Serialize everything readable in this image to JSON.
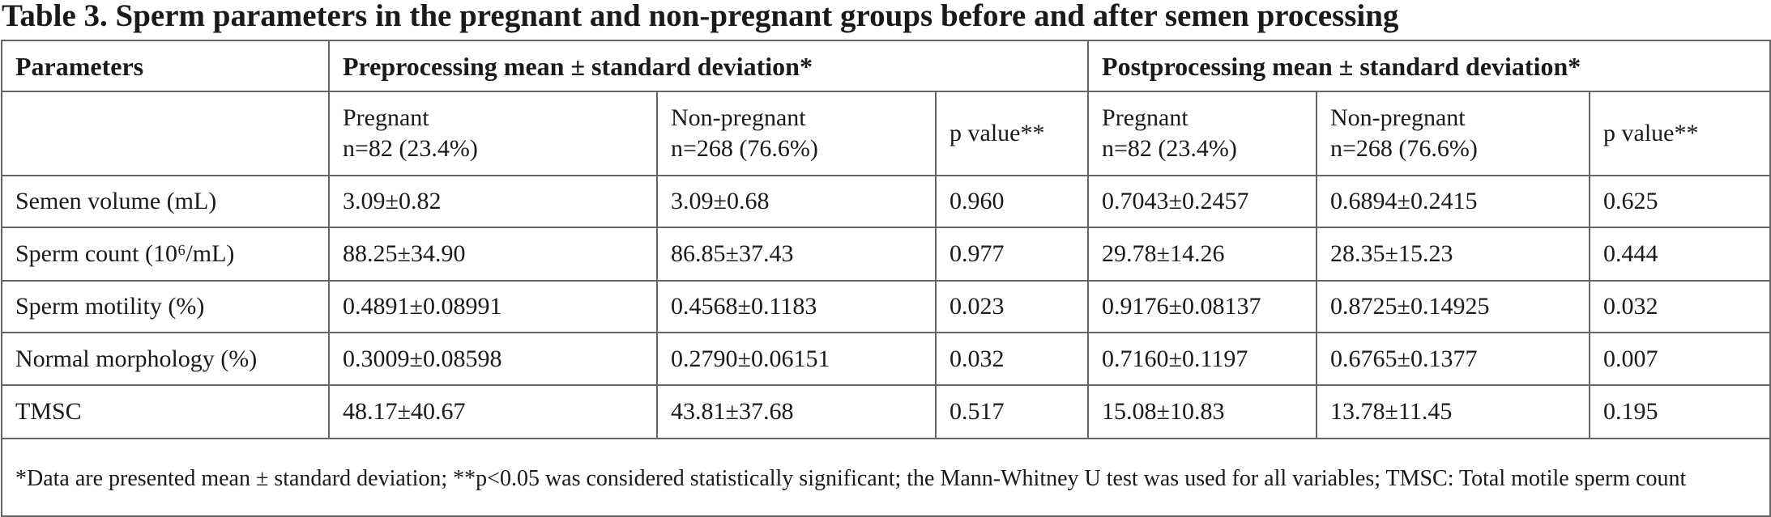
{
  "title": "Table 3. Sperm parameters in the pregnant and non-pregnant groups before and after semen processing",
  "table": {
    "header": [
      "Parameters",
      "Preprocessing mean ± standard deviation*",
      "Postprocessing mean ± standard deviation*"
    ],
    "subheader": [
      [
        "Pregnant",
        "n=82 (23.4%)"
      ],
      [
        "Non-pregnant",
        "n=268 (76.6%)"
      ],
      [
        "p value**"
      ],
      [
        "Pregnant",
        "n=82 (23.4%)"
      ],
      [
        "Non-pregnant",
        "n=268 (76.6%)"
      ],
      [
        "p value**"
      ]
    ],
    "rows": [
      [
        "Semen volume (mL)",
        "3.09±0.82",
        "3.09±0.68",
        "0.960",
        "0.7043±0.2457",
        "0.6894±0.2415",
        "0.625"
      ],
      [
        "Sperm count (10⁶/mL)",
        "88.25±34.90",
        "86.85±37.43",
        "0.977",
        "29.78±14.26",
        "28.35±15.23",
        "0.444"
      ],
      [
        "Sperm motility (%)",
        "0.4891±0.08991",
        "0.4568±0.1183",
        "0.023",
        "0.9176±0.08137",
        "0.8725±0.14925",
        "0.032"
      ],
      [
        "Normal morphology (%)",
        "0.3009±0.08598",
        "0.2790±0.06151",
        "0.032",
        "0.7160±0.1197",
        "0.6765±0.1377",
        "0.007"
      ],
      [
        "TMSC",
        "48.17±40.67",
        "43.81±37.68",
        "0.517",
        "15.08±10.83",
        "13.78±11.45",
        "0.195"
      ]
    ],
    "footnote": "*Data are presented mean ± standard deviation; **p<0.05 was considered statistically significant; the Mann-Whitney U test was used for all variables; TMSC: Total motile sperm count"
  }
}
